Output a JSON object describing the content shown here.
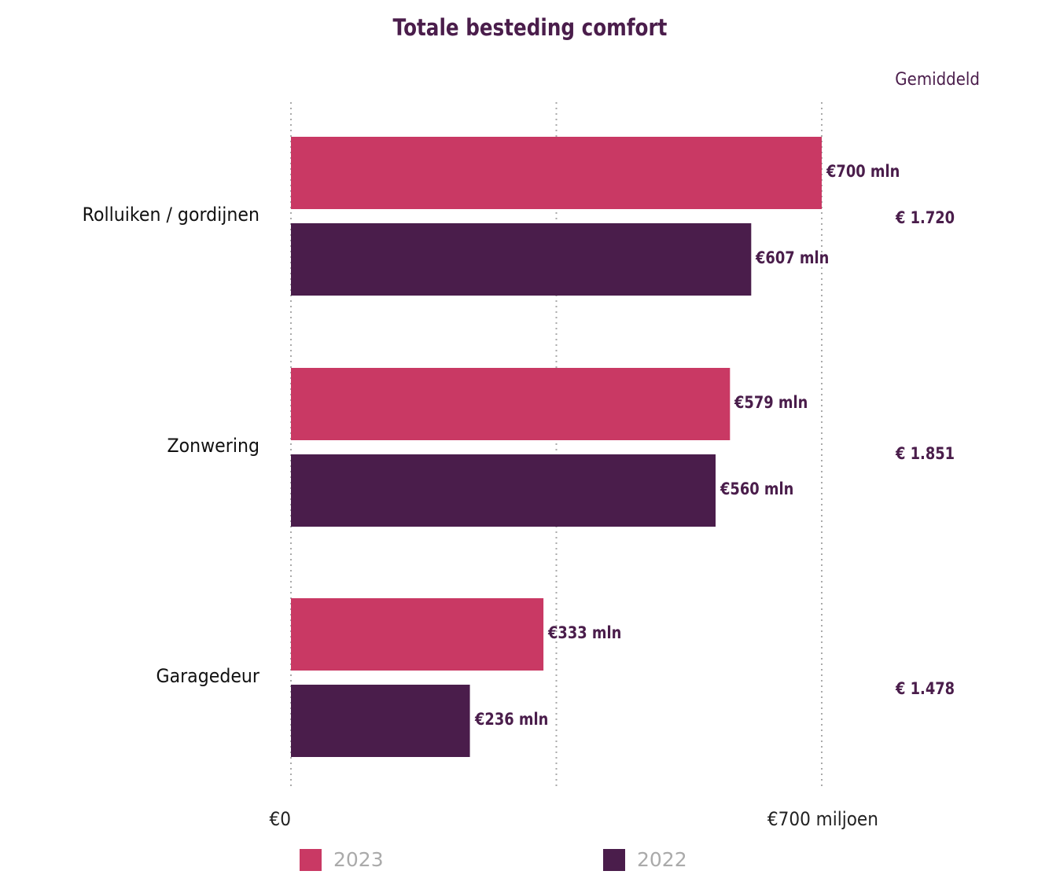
{
  "chart_data": {
    "type": "bar",
    "orientation": "horizontal",
    "title": "Totale besteding comfort",
    "categories": [
      "Rolluiken / gordijnen",
      "Zonwering",
      "Garagedeur"
    ],
    "series": [
      {
        "name": "2023",
        "color": "#c93964",
        "values": [
          700,
          579,
          333
        ],
        "labels": [
          "€700 mln",
          "€579 mln",
          "€333 mln"
        ]
      },
      {
        "name": "2022",
        "color": "#4a1d4b",
        "values": [
          607,
          560,
          236
        ],
        "labels": [
          "€607 mln",
          "€560 mln",
          "€236 mln"
        ]
      }
    ],
    "xlim": [
      0,
      700
    ],
    "xticks": [
      {
        "value": 0,
        "label": "€0"
      },
      {
        "value": 700,
        "label": "€700 miljoen"
      }
    ],
    "gridlines": [
      0,
      350,
      700
    ],
    "grid": "vertical dotted",
    "legend": "bottom",
    "average_header": "Gemiddeld",
    "averages": [
      "€ 1.720",
      "€ 1.851",
      "€ 1.478"
    ]
  }
}
